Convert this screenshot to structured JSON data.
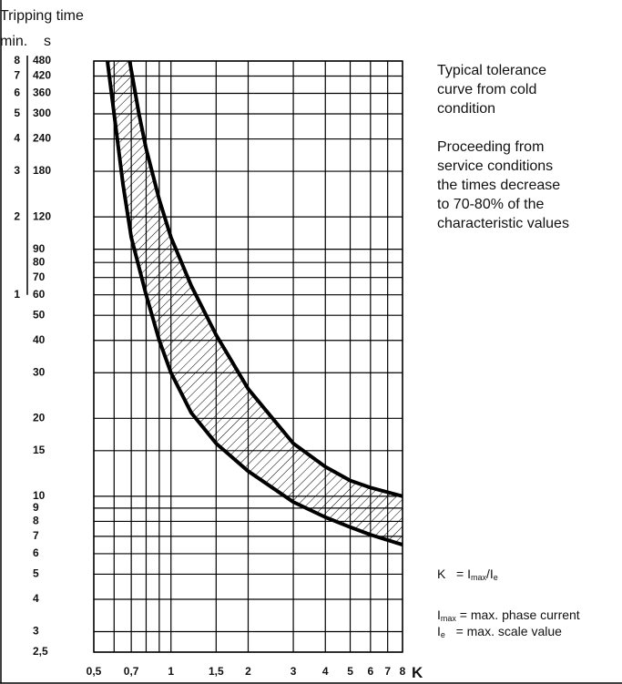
{
  "chart_data": {
    "type": "line",
    "title_lines": [
      "Tripping time"
    ],
    "y2_label": "min.",
    "y_label": "s",
    "x_label": "K",
    "log_x": true,
    "log_y": true,
    "grid": true,
    "xlim": [
      0.5,
      8
    ],
    "xticks": [
      {
        "value": 0.5,
        "label": "0,5"
      },
      {
        "value": 0.7,
        "label": "0,7"
      },
      1,
      {
        "value": 1.5,
        "label": "1,5"
      },
      2,
      3,
      4,
      5,
      6,
      7,
      8
    ],
    "x_minor_grid": [
      0.6,
      0.8,
      0.9
    ],
    "ylim": [
      2.5,
      480
    ],
    "yticks": [
      {
        "value": 2.5,
        "label": "2,5"
      },
      3,
      4,
      5,
      6,
      7,
      8,
      9,
      10,
      15,
      20,
      30,
      40,
      50,
      60,
      70,
      80,
      90,
      120,
      180,
      240,
      300,
      360,
      420,
      480
    ],
    "y2lim": [
      0.041667,
      8
    ],
    "y2ticks": [
      1,
      2,
      3,
      4,
      5,
      6,
      7,
      8
    ],
    "series": [
      {
        "name": "upper",
        "color": "#000000",
        "x": [
          0.69,
          0.75,
          0.8,
          0.9,
          1,
          1.2,
          1.5,
          2,
          3,
          4,
          5,
          6,
          8
        ],
        "values": [
          480,
          300,
          220,
          140,
          100,
          65,
          42,
          26,
          16,
          13,
          11.5,
          10.8,
          10
        ]
      },
      {
        "name": "lower",
        "color": "#000000",
        "x": [
          0.565,
          0.6,
          0.65,
          0.7,
          0.8,
          0.9,
          1,
          1.2,
          1.5,
          2,
          3,
          4,
          5,
          6,
          8
        ],
        "values": [
          480,
          300,
          160,
          100,
          60,
          40,
          30,
          21,
          16,
          12.5,
          9.5,
          8.3,
          7.6,
          7.1,
          6.5
        ]
      }
    ],
    "notes": [
      [
        "Typical tolerance",
        "curve from cold",
        "condition"
      ],
      [
        "Proceeding from",
        "service conditions",
        "the times decrease",
        "to 70-80% of the",
        "characteristic values"
      ]
    ],
    "formulas": [
      [
        {
          "text": "K   = I",
          "sub": false
        },
        {
          "text": "max",
          "sub": true
        },
        {
          "text": "/I",
          "sub": false
        },
        {
          "text": "e",
          "sub": true
        }
      ],
      [
        {
          "text": "I",
          "sub": false
        },
        {
          "text": "max",
          "sub": true
        },
        {
          "text": " = max. phase current",
          "sub": false
        }
      ],
      [
        {
          "text": "I",
          "sub": false
        },
        {
          "text": "e",
          "sub": true
        },
        {
          "text": "   = max. scale value",
          "sub": false
        }
      ]
    ]
  }
}
